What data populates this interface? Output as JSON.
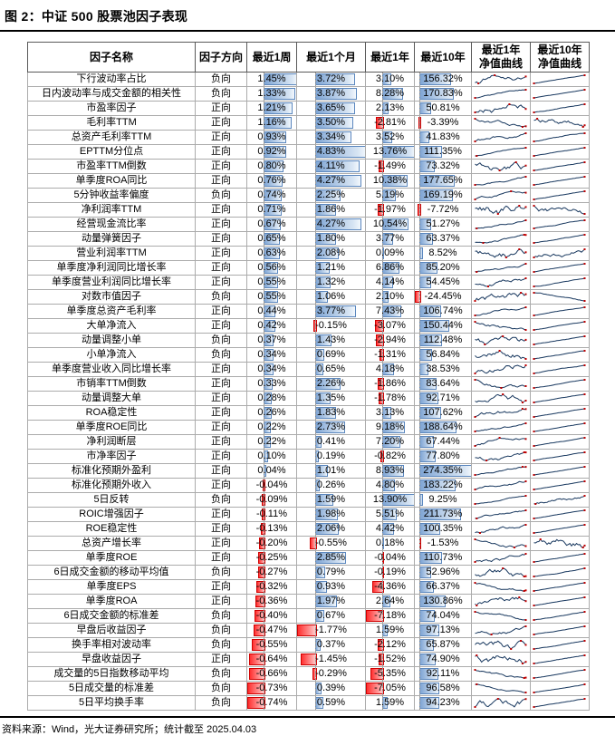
{
  "title": "图 2：中证 500 股票池因子表现",
  "footer": "资料来源：Wind，光大证券研究所；统计截至 2025.04.03",
  "colors": {
    "bar_positive": "#7FA5D4",
    "bar_negative": "#FF2F2F",
    "sparkline": "#17375E",
    "marker": "#C00000"
  },
  "chart_data": {
    "type": "table",
    "title": "图 2：中证 500 股票池因子表现",
    "columns": [
      "因子名称",
      "因子方向",
      "最近1周",
      "最近1个月",
      "最近1年",
      "最近10年",
      "最近1年\n净值曲线",
      "最近10年\n净值曲线"
    ],
    "rows": [
      {
        "name": "下行波动率占比",
        "dir": "负向",
        "w1": "1.45%",
        "m1": "3.72%",
        "y1": "3.10%",
        "y10": "156.32%"
      },
      {
        "name": "日内波动率与成交金额的相关性",
        "dir": "负向",
        "w1": "1.33%",
        "m1": "3.87%",
        "y1": "8.28%",
        "y10": "170.83%"
      },
      {
        "name": "市盈率因子",
        "dir": "正向",
        "w1": "1.21%",
        "m1": "3.65%",
        "y1": "2.13%",
        "y10": "50.81%"
      },
      {
        "name": "毛利率TTM",
        "dir": "正向",
        "w1": "1.16%",
        "m1": "3.50%",
        "y1": "-2.81%",
        "y10": "-3.39%"
      },
      {
        "name": "总资产毛利率TTM",
        "dir": "正向",
        "w1": "0.93%",
        "m1": "3.34%",
        "y1": "3.52%",
        "y10": "41.83%"
      },
      {
        "name": "EPTTM分位点",
        "dir": "正向",
        "w1": "0.92%",
        "m1": "4.83%",
        "y1": "13.76%",
        "y10": "111.35%"
      },
      {
        "name": "市盈率TTM倒数",
        "dir": "正向",
        "w1": "0.80%",
        "m1": "4.11%",
        "y1": "-1.49%",
        "y10": "73.32%"
      },
      {
        "name": "单季度ROA同比",
        "dir": "正向",
        "w1": "0.76%",
        "m1": "4.27%",
        "y1": "10.38%",
        "y10": "177.65%"
      },
      {
        "name": "5分钟收益率偏度",
        "dir": "负向",
        "w1": "0.74%",
        "m1": "2.25%",
        "y1": "5.19%",
        "y10": "169.19%"
      },
      {
        "name": "净利润率TTM",
        "dir": "正向",
        "w1": "0.71%",
        "m1": "1.86%",
        "y1": "-1.97%",
        "y10": "-7.72%"
      },
      {
        "name": "经营现金流比率",
        "dir": "正向",
        "w1": "0.67%",
        "m1": "4.27%",
        "y1": "10.54%",
        "y10": "51.27%"
      },
      {
        "name": "动量弹簧因子",
        "dir": "正向",
        "w1": "0.65%",
        "m1": "1.80%",
        "y1": "3.77%",
        "y10": "63.37%"
      },
      {
        "name": "营业利润率TTM",
        "dir": "正向",
        "w1": "0.63%",
        "m1": "2.08%",
        "y1": "0.09%",
        "y10": "8.52%"
      },
      {
        "name": "单季度净利润同比增长率",
        "dir": "正向",
        "w1": "0.56%",
        "m1": "1.21%",
        "y1": "6.86%",
        "y10": "85.20%"
      },
      {
        "name": "单季度营业利润同比增长率",
        "dir": "正向",
        "w1": "0.55%",
        "m1": "1.32%",
        "y1": "4.14%",
        "y10": "54.45%"
      },
      {
        "name": "对数市值因子",
        "dir": "负向",
        "w1": "0.55%",
        "m1": "1.06%",
        "y1": "2.10%",
        "y10": "-24.45%"
      },
      {
        "name": "单季度总资产毛利率",
        "dir": "正向",
        "w1": "0.44%",
        "m1": "3.77%",
        "y1": "7.43%",
        "y10": "106.74%"
      },
      {
        "name": "大单净流入",
        "dir": "正向",
        "w1": "0.42%",
        "m1": "-0.15%",
        "y1": "-3.07%",
        "y10": "150.44%"
      },
      {
        "name": "动量调整小单",
        "dir": "负向",
        "w1": "0.37%",
        "m1": "1.43%",
        "y1": "-2.94%",
        "y10": "112.48%"
      },
      {
        "name": "小单净流入",
        "dir": "负向",
        "w1": "0.34%",
        "m1": "0.69%",
        "y1": "-1.31%",
        "y10": "56.84%"
      },
      {
        "name": "单季度营业收入同比增长率",
        "dir": "正向",
        "w1": "0.34%",
        "m1": "0.65%",
        "y1": "4.18%",
        "y10": "38.53%"
      },
      {
        "name": "市销率TTM倒数",
        "dir": "正向",
        "w1": "0.33%",
        "m1": "2.26%",
        "y1": "-1.86%",
        "y10": "83.64%"
      },
      {
        "name": "动量调整大单",
        "dir": "正向",
        "w1": "0.28%",
        "m1": "1.35%",
        "y1": "-1.78%",
        "y10": "92.71%"
      },
      {
        "name": "ROA稳定性",
        "dir": "正向",
        "w1": "0.26%",
        "m1": "1.83%",
        "y1": "3.13%",
        "y10": "107.62%"
      },
      {
        "name": "单季度ROE同比",
        "dir": "正向",
        "w1": "0.22%",
        "m1": "2.73%",
        "y1": "9.18%",
        "y10": "188.64%"
      },
      {
        "name": "净利润断层",
        "dir": "正向",
        "w1": "0.22%",
        "m1": "0.41%",
        "y1": "7.20%",
        "y10": "67.44%"
      },
      {
        "name": "市净率因子",
        "dir": "正向",
        "w1": "0.10%",
        "m1": "0.19%",
        "y1": "-0.82%",
        "y10": "77.80%"
      },
      {
        "name": "标准化预期外盈利",
        "dir": "正向",
        "w1": "0.04%",
        "m1": "1.01%",
        "y1": "8.93%",
        "y10": "274.35%"
      },
      {
        "name": "标准化预期外收入",
        "dir": "正向",
        "w1": "-0.04%",
        "m1": "0.26%",
        "y1": "4.80%",
        "y10": "183.22%"
      },
      {
        "name": "5日反转",
        "dir": "负向",
        "w1": "-0.09%",
        "m1": "1.59%",
        "y1": "13.90%",
        "y10": "9.25%"
      },
      {
        "name": "ROIC增强因子",
        "dir": "正向",
        "w1": "-0.11%",
        "m1": "1.98%",
        "y1": "5.51%",
        "y10": "211.73%"
      },
      {
        "name": "ROE稳定性",
        "dir": "正向",
        "w1": "-0.13%",
        "m1": "2.06%",
        "y1": "4.42%",
        "y10": "100.35%"
      },
      {
        "name": "总资产增长率",
        "dir": "正向",
        "w1": "-0.20%",
        "m1": "-0.55%",
        "y1": "0.18%",
        "y10": "-1.53%"
      },
      {
        "name": "单季度ROE",
        "dir": "正向",
        "w1": "-0.25%",
        "m1": "2.85%",
        "y1": "-0.04%",
        "y10": "110.73%"
      },
      {
        "name": "6日成交金额的移动平均值",
        "dir": "负向",
        "w1": "-0.27%",
        "m1": "0.79%",
        "y1": "-0.19%",
        "y10": "52.96%"
      },
      {
        "name": "单季度EPS",
        "dir": "正向",
        "w1": "-0.32%",
        "m1": "0.93%",
        "y1": "-4.36%",
        "y10": "66.37%"
      },
      {
        "name": "单季度ROA",
        "dir": "正向",
        "w1": "-0.36%",
        "m1": "1.97%",
        "y1": "2.64%",
        "y10": "130.86%"
      },
      {
        "name": "6日成交金额的标准差",
        "dir": "负向",
        "w1": "-0.40%",
        "m1": "0.67%",
        "y1": "-7.18%",
        "y10": "74.04%"
      },
      {
        "name": "早盘后收益因子",
        "dir": "负向",
        "w1": "-0.47%",
        "m1": "-1.77%",
        "y1": "1.59%",
        "y10": "97.13%"
      },
      {
        "name": "换手率相对波动率",
        "dir": "负向",
        "w1": "-0.55%",
        "m1": "0.37%",
        "y1": "-2.12%",
        "y10": "65.87%"
      },
      {
        "name": "早盘收益因子",
        "dir": "正向",
        "w1": "-0.64%",
        "m1": "-1.45%",
        "y1": "-1.52%",
        "y10": "74.90%"
      },
      {
        "name": "成交量的5日指数移动平均",
        "dir": "负向",
        "w1": "-0.66%",
        "m1": "-0.29%",
        "y1": "-5.35%",
        "y10": "92.11%"
      },
      {
        "name": "5日成交量的标准差",
        "dir": "负向",
        "w1": "-0.73%",
        "m1": "0.39%",
        "y1": "-7.05%",
        "y10": "96.58%"
      },
      {
        "name": "5日平均换手率",
        "dir": "负向",
        "w1": "-0.74%",
        "m1": "0.59%",
        "y1": "1.59%",
        "y10": "94.23%"
      }
    ]
  }
}
